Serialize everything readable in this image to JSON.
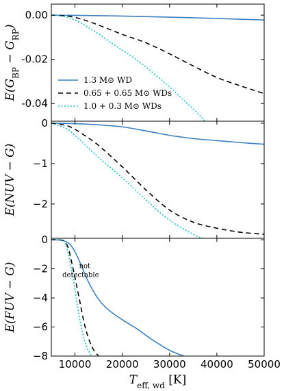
{
  "chart_data": {
    "type": "line",
    "xlabel": "T_eff, wd [K]",
    "xlim": [
      5000,
      50000
    ],
    "x_ticks": [
      "10000",
      "20000",
      "30000",
      "40000",
      "50000"
    ],
    "legend": {
      "placement": "lower-left of top panel",
      "entries": [
        {
          "label": "1.3 M⊙ WD",
          "color": "#3a7fc0",
          "style": "solid"
        },
        {
          "label": "0.65 + 0.65 M⊙ WDs",
          "color": "#000000",
          "style": "dashed"
        },
        {
          "label": "1.0 + 0.3 M⊙ WDs",
          "color": "#22c2c8",
          "style": "dotted"
        }
      ]
    },
    "panels": [
      {
        "ylabel": "E(G_BP − G_RP)",
        "ylim": [
          -0.048,
          0.005
        ],
        "y_ticks": [
          {
            "value": 0.0,
            "label": "0.00"
          },
          {
            "value": -0.02,
            "label": "-0.02"
          },
          {
            "value": -0.04,
            "label": "-0.04"
          }
        ],
        "series": [
          {
            "color": "#3a7fc0",
            "style": "solid",
            "x": [
              5000,
              10000,
              20000,
              30000,
              40000,
              50000
            ],
            "y": [
              0.0,
              -0.0001,
              -0.0004,
              -0.0009,
              -0.0015,
              -0.0022
            ]
          },
          {
            "color": "#000000",
            "style": "dashed",
            "x": [
              5000,
              8000,
              10000,
              12000,
              15000,
              20000,
              25000,
              30000,
              35000,
              40000,
              45000,
              50000
            ],
            "y": [
              0.0,
              -0.0003,
              -0.001,
              -0.0022,
              -0.0045,
              -0.0087,
              -0.0125,
              -0.0175,
              -0.023,
              -0.0282,
              -0.032,
              -0.0355
            ]
          },
          {
            "color": "#22c2c8",
            "style": "dotted",
            "x": [
              5000,
              8000,
              10000,
              12000,
              15000,
              18000,
              21000,
              24000,
              27000,
              30000,
              33000,
              36000,
              37500
            ],
            "y": [
              0.0,
              -0.0007,
              -0.0022,
              -0.0045,
              -0.0085,
              -0.013,
              -0.0172,
              -0.0218,
              -0.027,
              -0.0325,
              -0.0385,
              -0.0445,
              -0.048
            ]
          }
        ]
      },
      {
        "ylabel": "E(NUV − G)",
        "ylim": [
          -2.85,
          0.05
        ],
        "y_ticks": [
          {
            "value": 0,
            "label": "0"
          },
          {
            "value": -1,
            "label": "−1"
          },
          {
            "value": -2,
            "label": "−2"
          }
        ],
        "series": [
          {
            "color": "#3a7fc0",
            "style": "solid",
            "x": [
              5000,
              10000,
              15000,
              20000,
              25000,
              30000,
              35000,
              40000,
              45000,
              50000
            ],
            "y": [
              0.0,
              -0.01,
              -0.04,
              -0.09,
              -0.19,
              -0.3,
              -0.38,
              -0.43,
              -0.48,
              -0.52
            ]
          },
          {
            "color": "#000000",
            "style": "dashed",
            "x": [
              5000,
              8000,
              10000,
              12000,
              15000,
              20000,
              25000,
              30000,
              35000,
              40000,
              45000,
              50000
            ],
            "y": [
              0.0,
              -0.05,
              -0.15,
              -0.3,
              -0.55,
              -1.08,
              -1.65,
              -2.15,
              -2.45,
              -2.6,
              -2.7,
              -2.75
            ]
          },
          {
            "color": "#22c2c8",
            "style": "dotted",
            "x": [
              5000,
              8000,
              10000,
              12000,
              15000,
              20000,
              25000,
              30000,
              35000,
              37000
            ],
            "y": [
              0.0,
              -0.12,
              -0.3,
              -0.52,
              -0.85,
              -1.35,
              -1.9,
              -2.4,
              -2.75,
              -2.85
            ]
          }
        ]
      },
      {
        "ylabel": "E(FUV − G)",
        "ylim": [
          -8.0,
          0.1
        ],
        "y_ticks": [
          {
            "value": 0,
            "label": "0"
          },
          {
            "value": -2,
            "label": "−2"
          },
          {
            "value": -4,
            "label": "−4"
          },
          {
            "value": -6,
            "label": "−6"
          },
          {
            "value": -8,
            "label": "−8"
          }
        ],
        "annotation": {
          "lines": [
            "not",
            "detectable"
          ],
          "x": 11200,
          "y": -2.6
        },
        "series": [
          {
            "color": "#3a7fc0",
            "style": "solid",
            "x": [
              5000,
              7000,
              8500,
              9500,
              10500,
              11500,
              13000,
              15000,
              17000,
              20000,
              23000,
              26000,
              30000,
              33000
            ],
            "y": [
              0.0,
              -0.03,
              -0.2,
              -0.55,
              -1.15,
              -1.9,
              -3.0,
              -4.1,
              -4.8,
              -5.5,
              -6.1,
              -6.8,
              -7.6,
              -8.0
            ],
            "thin_x_range": [
              9000,
              23500
            ]
          },
          {
            "color": "#000000",
            "style": "dashed",
            "x": [
              5000,
              7500,
              8500,
              9200,
              10000,
              11000,
              12000,
              13000,
              14000,
              15000
            ],
            "y": [
              0.0,
              -0.05,
              -0.5,
              -1.4,
              -2.6,
              -4.2,
              -5.8,
              -6.9,
              -7.6,
              -8.0
            ],
            "thin_x_range": [
              9000,
              12500
            ]
          },
          {
            "color": "#22c2c8",
            "style": "dotted",
            "x": [
              5000,
              7500,
              8300,
              9000,
              9800,
              10500,
              11200,
              12000,
              12800,
              13500
            ],
            "y": [
              0.0,
              -0.05,
              -0.6,
              -1.6,
              -3.0,
              -4.5,
              -5.8,
              -6.9,
              -7.6,
              -8.0
            ]
          }
        ]
      }
    ]
  }
}
